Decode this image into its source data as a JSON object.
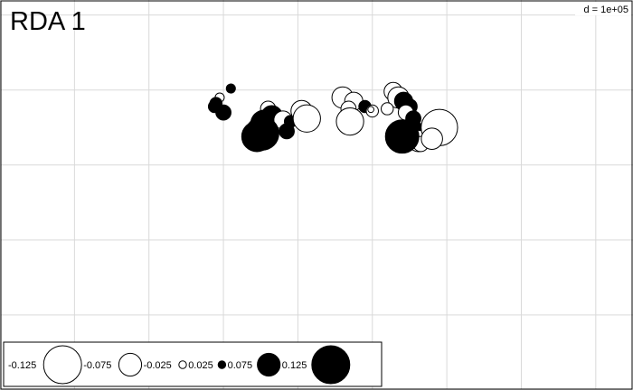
{
  "chart_data": {
    "type": "scatter",
    "title": "RDA 1",
    "grid_scale_label": "d = 1e+05",
    "grid": true,
    "legend_placement": "bottom-left",
    "xlim": [
      0,
      8.5
    ],
    "ylim": [
      0,
      5.2
    ],
    "size_legend": [
      {
        "label": "-0.125",
        "value": -0.125
      },
      {
        "label": "-0.075",
        "value": -0.075
      },
      {
        "label": "-0.025",
        "value": -0.025
      },
      {
        "label": "0.025",
        "value": 0.025
      },
      {
        "label": "0.075",
        "value": 0.075
      },
      {
        "label": "0.125",
        "value": 0.125
      }
    ],
    "points": [
      {
        "x": 3.1,
        "y": 4.02,
        "value": 0.03
      },
      {
        "x": 2.95,
        "y": 3.9,
        "value": -0.03
      },
      {
        "x": 2.9,
        "y": 3.82,
        "value": 0.04
      },
      {
        "x": 3.0,
        "y": 3.7,
        "value": 0.05
      },
      {
        "x": 2.88,
        "y": 3.78,
        "value": 0.04
      },
      {
        "x": 3.6,
        "y": 3.75,
        "value": -0.05
      },
      {
        "x": 3.65,
        "y": 3.65,
        "value": 0.07
      },
      {
        "x": 3.55,
        "y": 3.55,
        "value": 0.09
      },
      {
        "x": 3.8,
        "y": 3.6,
        "value": -0.06
      },
      {
        "x": 3.9,
        "y": 3.58,
        "value": 0.04
      },
      {
        "x": 3.85,
        "y": 3.45,
        "value": 0.05
      },
      {
        "x": 4.05,
        "y": 3.72,
        "value": -0.07
      },
      {
        "x": 4.12,
        "y": 3.62,
        "value": -0.09
      },
      {
        "x": 3.45,
        "y": 3.38,
        "value": 0.1
      },
      {
        "x": 3.52,
        "y": 3.42,
        "value": 0.11
      },
      {
        "x": 4.6,
        "y": 3.9,
        "value": -0.07
      },
      {
        "x": 4.75,
        "y": 3.85,
        "value": -0.06
      },
      {
        "x": 4.68,
        "y": 3.75,
        "value": -0.05
      },
      {
        "x": 4.7,
        "y": 3.58,
        "value": -0.09
      },
      {
        "x": 4.9,
        "y": 3.78,
        "value": 0.04
      },
      {
        "x": 5.0,
        "y": 3.72,
        "value": -0.04
      },
      {
        "x": 4.98,
        "y": 3.74,
        "value": -0.02
      },
      {
        "x": 5.28,
        "y": 3.98,
        "value": -0.06
      },
      {
        "x": 5.35,
        "y": 3.9,
        "value": -0.07
      },
      {
        "x": 5.42,
        "y": 3.85,
        "value": 0.06
      },
      {
        "x": 5.5,
        "y": 3.78,
        "value": 0.05
      },
      {
        "x": 5.45,
        "y": 3.7,
        "value": -0.05
      },
      {
        "x": 5.2,
        "y": 3.75,
        "value": -0.04
      },
      {
        "x": 5.55,
        "y": 3.62,
        "value": 0.05
      },
      {
        "x": 5.58,
        "y": 3.45,
        "value": 0.06
      },
      {
        "x": 5.62,
        "y": 3.32,
        "value": -0.07
      },
      {
        "x": 5.65,
        "y": 3.28,
        "value": -0.05
      },
      {
        "x": 5.4,
        "y": 3.38,
        "value": 0.11
      },
      {
        "x": 5.9,
        "y": 3.5,
        "value": -0.12
      },
      {
        "x": 5.8,
        "y": 3.35,
        "value": -0.07
      }
    ]
  }
}
